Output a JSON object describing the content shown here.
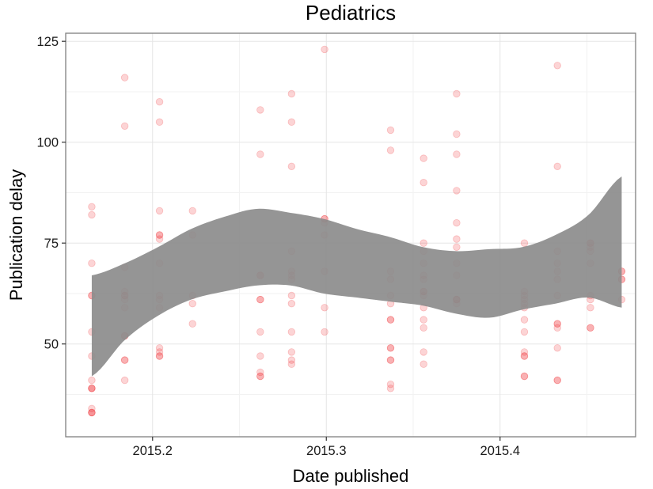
{
  "chart_data": {
    "type": "scatter",
    "title": "Pediatrics",
    "xlabel": "Date published",
    "ylabel": "Publication delay",
    "xlim": [
      2015.15,
      2015.478
    ],
    "ylim": [
      27,
      127
    ],
    "x_ticks": [
      2015.2,
      2015.3,
      2015.4
    ],
    "x_tick_labels": [
      "2015.2",
      "2015.3",
      "2015.4"
    ],
    "y_ticks": [
      50,
      75,
      100,
      125
    ],
    "y_tick_labels": [
      "50",
      "75",
      "100",
      "125"
    ],
    "grid": true,
    "theme": "bw",
    "point_color": "#f0262b",
    "point_alpha": 0.2,
    "band_color": "#8c8c8c",
    "points": [
      [
        2015.165,
        84
      ],
      [
        2015.165,
        82
      ],
      [
        2015.165,
        70
      ],
      [
        2015.165,
        62
      ],
      [
        2015.165,
        62
      ],
      [
        2015.165,
        53
      ],
      [
        2015.165,
        47
      ],
      [
        2015.165,
        41
      ],
      [
        2015.165,
        39
      ],
      [
        2015.165,
        39
      ],
      [
        2015.165,
        39
      ],
      [
        2015.165,
        34
      ],
      [
        2015.165,
        33
      ],
      [
        2015.165,
        33
      ],
      [
        2015.165,
        33
      ],
      [
        2015.184,
        116
      ],
      [
        2015.184,
        104
      ],
      [
        2015.184,
        69
      ],
      [
        2015.184,
        63
      ],
      [
        2015.184,
        62
      ],
      [
        2015.184,
        62
      ],
      [
        2015.184,
        61
      ],
      [
        2015.184,
        59
      ],
      [
        2015.184,
        52
      ],
      [
        2015.184,
        52
      ],
      [
        2015.184,
        46
      ],
      [
        2015.184,
        46
      ],
      [
        2015.184,
        41
      ],
      [
        2015.204,
        110
      ],
      [
        2015.204,
        105
      ],
      [
        2015.204,
        83
      ],
      [
        2015.204,
        77
      ],
      [
        2015.204,
        77
      ],
      [
        2015.204,
        76
      ],
      [
        2015.204,
        70
      ],
      [
        2015.204,
        62
      ],
      [
        2015.204,
        61
      ],
      [
        2015.204,
        59
      ],
      [
        2015.204,
        49
      ],
      [
        2015.204,
        48
      ],
      [
        2015.204,
        47
      ],
      [
        2015.204,
        47
      ],
      [
        2015.223,
        83
      ],
      [
        2015.223,
        77
      ],
      [
        2015.223,
        62
      ],
      [
        2015.223,
        60
      ],
      [
        2015.223,
        55
      ],
      [
        2015.262,
        108
      ],
      [
        2015.262,
        97
      ],
      [
        2015.262,
        67
      ],
      [
        2015.262,
        67
      ],
      [
        2015.262,
        61
      ],
      [
        2015.262,
        61
      ],
      [
        2015.262,
        53
      ],
      [
        2015.262,
        47
      ],
      [
        2015.262,
        43
      ],
      [
        2015.262,
        42
      ],
      [
        2015.262,
        42
      ],
      [
        2015.28,
        112
      ],
      [
        2015.28,
        105
      ],
      [
        2015.28,
        94
      ],
      [
        2015.28,
        73
      ],
      [
        2015.28,
        68
      ],
      [
        2015.28,
        67
      ],
      [
        2015.28,
        66
      ],
      [
        2015.28,
        62
      ],
      [
        2015.28,
        60
      ],
      [
        2015.28,
        53
      ],
      [
        2015.28,
        48
      ],
      [
        2015.28,
        46
      ],
      [
        2015.28,
        45
      ],
      [
        2015.299,
        123
      ],
      [
        2015.299,
        81
      ],
      [
        2015.299,
        81
      ],
      [
        2015.299,
        80
      ],
      [
        2015.299,
        77
      ],
      [
        2015.299,
        68
      ],
      [
        2015.299,
        59
      ],
      [
        2015.299,
        53
      ],
      [
        2015.337,
        103
      ],
      [
        2015.337,
        98
      ],
      [
        2015.337,
        68
      ],
      [
        2015.337,
        66
      ],
      [
        2015.337,
        62
      ],
      [
        2015.337,
        60
      ],
      [
        2015.337,
        56
      ],
      [
        2015.337,
        56
      ],
      [
        2015.337,
        49
      ],
      [
        2015.337,
        49
      ],
      [
        2015.337,
        46
      ],
      [
        2015.337,
        46
      ],
      [
        2015.337,
        40
      ],
      [
        2015.337,
        39
      ],
      [
        2015.356,
        96
      ],
      [
        2015.356,
        90
      ],
      [
        2015.356,
        75
      ],
      [
        2015.356,
        73
      ],
      [
        2015.356,
        70
      ],
      [
        2015.356,
        67
      ],
      [
        2015.356,
        66
      ],
      [
        2015.356,
        63
      ],
      [
        2015.356,
        63
      ],
      [
        2015.356,
        62
      ],
      [
        2015.356,
        59
      ],
      [
        2015.356,
        56
      ],
      [
        2015.356,
        54
      ],
      [
        2015.356,
        48
      ],
      [
        2015.356,
        45
      ],
      [
        2015.375,
        112
      ],
      [
        2015.375,
        102
      ],
      [
        2015.375,
        97
      ],
      [
        2015.375,
        88
      ],
      [
        2015.375,
        80
      ],
      [
        2015.375,
        76
      ],
      [
        2015.375,
        74
      ],
      [
        2015.375,
        70
      ],
      [
        2015.375,
        67
      ],
      [
        2015.375,
        61
      ],
      [
        2015.375,
        61
      ],
      [
        2015.375,
        61
      ],
      [
        2015.375,
        60
      ],
      [
        2015.414,
        75
      ],
      [
        2015.414,
        63
      ],
      [
        2015.414,
        62
      ],
      [
        2015.414,
        61
      ],
      [
        2015.414,
        60
      ],
      [
        2015.414,
        59
      ],
      [
        2015.414,
        56
      ],
      [
        2015.414,
        53
      ],
      [
        2015.414,
        48
      ],
      [
        2015.414,
        47
      ],
      [
        2015.414,
        47
      ],
      [
        2015.414,
        42
      ],
      [
        2015.414,
        42
      ],
      [
        2015.433,
        119
      ],
      [
        2015.433,
        94
      ],
      [
        2015.433,
        73
      ],
      [
        2015.433,
        70
      ],
      [
        2015.433,
        68
      ],
      [
        2015.433,
        66
      ],
      [
        2015.433,
        62
      ],
      [
        2015.433,
        55
      ],
      [
        2015.433,
        55
      ],
      [
        2015.433,
        54
      ],
      [
        2015.433,
        49
      ],
      [
        2015.433,
        41
      ],
      [
        2015.433,
        41
      ],
      [
        2015.452,
        75
      ],
      [
        2015.452,
        75
      ],
      [
        2015.452,
        74
      ],
      [
        2015.452,
        73
      ],
      [
        2015.452,
        70
      ],
      [
        2015.452,
        62
      ],
      [
        2015.452,
        61
      ],
      [
        2015.452,
        59
      ],
      [
        2015.452,
        54
      ],
      [
        2015.452,
        54
      ],
      [
        2015.47,
        68
      ],
      [
        2015.47,
        68
      ],
      [
        2015.47,
        66
      ],
      [
        2015.47,
        66
      ],
      [
        2015.47,
        61
      ]
    ],
    "confidence_band": {
      "x": [
        2015.165,
        2015.184,
        2015.204,
        2015.223,
        2015.242,
        2015.262,
        2015.28,
        2015.299,
        2015.318,
        2015.337,
        2015.356,
        2015.375,
        2015.394,
        2015.414,
        2015.433,
        2015.452,
        2015.47
      ],
      "lower": [
        42,
        51,
        57,
        61,
        63,
        64.5,
        64.5,
        62.5,
        61.5,
        60.5,
        59.5,
        57.5,
        56.5,
        58.5,
        60,
        61.5,
        59
      ],
      "upper": [
        67,
        70,
        74,
        78.5,
        81.5,
        83.5,
        82.5,
        81,
        78.5,
        76.5,
        74,
        73,
        73.5,
        74,
        77,
        82,
        91.5
      ]
    }
  }
}
